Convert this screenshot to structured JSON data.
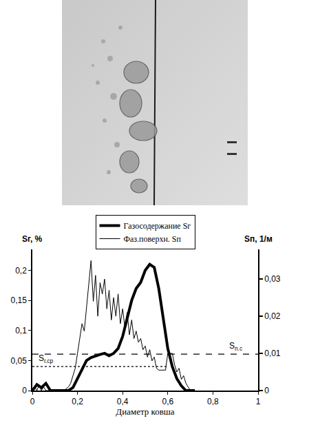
{
  "chart_data": {
    "type": "line",
    "xlabel": "Диаметр ковша",
    "ylabel": "Sг, %",
    "y2label": "Sп, 1/м",
    "xlim": [
      0,
      1
    ],
    "xticks": [
      0,
      {
        "value": 0.2,
        "label": "0,2"
      },
      {
        "value": 0.4,
        "label": "0,4"
      },
      {
        "value": 0.6,
        "label": "0,6"
      },
      {
        "value": 0.8,
        "label": "0,8"
      },
      1
    ],
    "ylim": [
      0,
      0.235
    ],
    "yticks": [
      0,
      {
        "value": 0.05,
        "label": "0,05"
      },
      {
        "value": 0.1,
        "label": "0,1"
      },
      {
        "value": 0.15,
        "label": "0,15"
      },
      {
        "value": 0.2,
        "label": "0,2"
      }
    ],
    "y2lim": [
      0,
      0.038
    ],
    "y2ticks": [
      0,
      {
        "value": 0.01,
        "label": "0,01"
      },
      {
        "value": 0.02,
        "label": "0,02"
      },
      {
        "value": 0.03,
        "label": "0,03"
      }
    ],
    "grid": false,
    "legend": "top",
    "series": [
      {
        "name": "Газосодержание Sг",
        "color": "#000000",
        "line_style": "thick",
        "axis": "y",
        "x": [
          0,
          0.02,
          0.04,
          0.06,
          0.08,
          0.1,
          0.12,
          0.14,
          0.16,
          0.18,
          0.2,
          0.22,
          0.24,
          0.26,
          0.28,
          0.3,
          0.32,
          0.34,
          0.36,
          0.38,
          0.4,
          0.42,
          0.44,
          0.46,
          0.48,
          0.5,
          0.52,
          0.54,
          0.56,
          0.58,
          0.6,
          0.62,
          0.64,
          0.66,
          0.68,
          0.7,
          0.72
        ],
        "values": [
          0,
          0.01,
          0.005,
          0.012,
          0,
          0,
          0,
          0,
          0,
          0.005,
          0.02,
          0.035,
          0.05,
          0.055,
          0.058,
          0.06,
          0.062,
          0.058,
          0.062,
          0.07,
          0.09,
          0.12,
          0.15,
          0.17,
          0.18,
          0.2,
          0.21,
          0.205,
          0.17,
          0.12,
          0.07,
          0.04,
          0.02,
          0.008,
          0,
          0,
          0
        ]
      },
      {
        "name": "Фаз.поверхн. Sп",
        "color": "#000000",
        "line_style": "solid",
        "axis": "y2",
        "x": [
          0,
          0.01,
          0.02,
          0.03,
          0.04,
          0.05,
          0.06,
          0.07,
          0.08,
          0.09,
          0.1,
          0.11,
          0.12,
          0.13,
          0.14,
          0.15,
          0.16,
          0.17,
          0.18,
          0.19,
          0.2,
          0.21,
          0.22,
          0.23,
          0.24,
          0.25,
          0.26,
          0.27,
          0.28,
          0.29,
          0.3,
          0.31,
          0.32,
          0.33,
          0.34,
          0.35,
          0.36,
          0.37,
          0.38,
          0.39,
          0.4,
          0.41,
          0.42,
          0.43,
          0.44,
          0.45,
          0.46,
          0.47,
          0.48,
          0.49,
          0.5,
          0.51,
          0.52,
          0.53,
          0.54,
          0.55,
          0.56,
          0.57,
          0.58,
          0.59,
          0.6,
          0.61,
          0.62,
          0.63,
          0.64,
          0.65,
          0.66,
          0.67,
          0.68,
          0.69,
          0.7,
          0.71,
          0.72
        ],
        "values": [
          0,
          0.001,
          0,
          0.0015,
          0,
          0.001,
          0,
          0,
          0,
          0,
          0,
          0,
          0,
          0,
          0,
          0.0005,
          0.001,
          0.002,
          0.004,
          0.006,
          0.01,
          0.014,
          0.018,
          0.016,
          0.022,
          0.028,
          0.035,
          0.024,
          0.031,
          0.02,
          0.029,
          0.026,
          0.03,
          0.022,
          0.027,
          0.019,
          0.025,
          0.02,
          0.026,
          0.018,
          0.022,
          0.017,
          0.021,
          0.015,
          0.019,
          0.014,
          0.016,
          0.013,
          0.014,
          0.011,
          0.012,
          0.009,
          0.011,
          0.008,
          0.009,
          0.006,
          0.0055,
          0.0055,
          0.0055,
          0.0055,
          0.01,
          0.01,
          0.01,
          0.007,
          0.005,
          0.006,
          0.003,
          0.004,
          0.002,
          0.001,
          0,
          0,
          0
        ]
      }
    ],
    "reference_lines": [
      {
        "label": "Sг.ср",
        "value": 0.04,
        "x": [
          0,
          0.6
        ],
        "label_x": 0.06,
        "line_style": "dotted",
        "axis": "y"
      },
      {
        "label": "Sп.с",
        "value": 0.0098,
        "x": [
          0,
          1
        ],
        "label_x": 0.9,
        "line_style": "dashed",
        "axis": "y2"
      }
    ]
  }
}
